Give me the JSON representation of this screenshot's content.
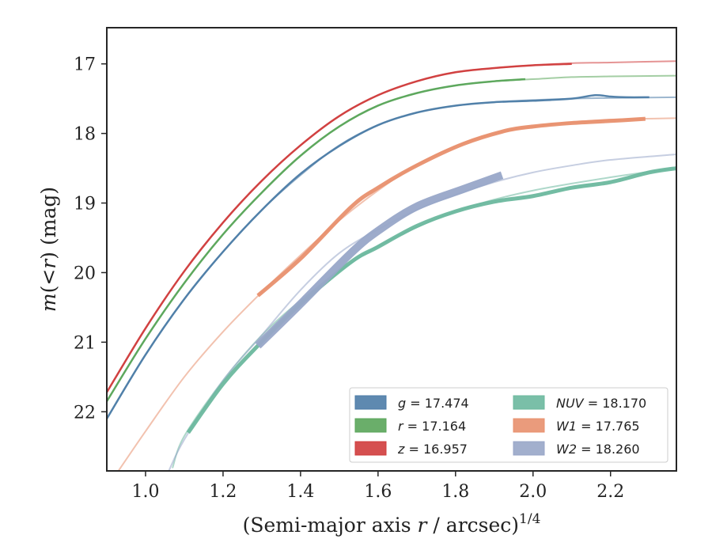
{
  "chart_data": {
    "type": "line",
    "xlabel_prefix": "(Semi-major axis ",
    "xlabel_var": "r",
    "xlabel_suffix": " / arcsec)",
    "xlabel_exp": "1/4",
    "ylabel_var": "m",
    "ylabel_lt": "(<",
    "ylabel_r": "r",
    "ylabel_suffix": ") (mag)",
    "xlim": [
      0.9,
      2.37
    ],
    "ylim": [
      22.85,
      16.48
    ],
    "y_inverted": true,
    "xticks": [
      1.0,
      1.2,
      1.4,
      1.6,
      1.8,
      2.0,
      2.2
    ],
    "xtick_labels": [
      "1.0",
      "1.2",
      "1.4",
      "1.6",
      "1.8",
      "2.0",
      "2.2"
    ],
    "yticks": [
      17,
      18,
      19,
      20,
      21,
      22
    ],
    "ytick_labels": [
      "17",
      "18",
      "19",
      "20",
      "21",
      "22"
    ],
    "grid": false,
    "legend_position": "lower-right",
    "series": [
      {
        "name": "g",
        "legend_value": "= 17.474",
        "color": "#4c7ca7",
        "thick_width": 2.5,
        "model": [
          [
            0.9,
            22.1
          ],
          [
            1.0,
            21.18
          ],
          [
            1.1,
            20.38
          ],
          [
            1.2,
            19.7
          ],
          [
            1.3,
            19.1
          ],
          [
            1.4,
            18.6
          ],
          [
            1.5,
            18.17
          ],
          [
            1.6,
            17.88
          ],
          [
            1.7,
            17.7
          ],
          [
            1.8,
            17.6
          ],
          [
            1.9,
            17.55
          ],
          [
            2.0,
            17.52
          ],
          [
            2.1,
            17.5
          ],
          [
            2.2,
            17.49
          ],
          [
            2.37,
            17.48
          ]
        ],
        "data": [
          [
            0.9,
            22.1
          ],
          [
            1.0,
            21.18
          ],
          [
            1.1,
            20.38
          ],
          [
            1.2,
            19.7
          ],
          [
            1.3,
            19.1
          ],
          [
            1.4,
            18.58
          ],
          [
            1.5,
            18.18
          ],
          [
            1.6,
            17.88
          ],
          [
            1.7,
            17.7
          ],
          [
            1.8,
            17.6
          ],
          [
            1.9,
            17.55
          ],
          [
            2.0,
            17.53
          ],
          [
            2.1,
            17.5
          ],
          [
            2.16,
            17.45
          ],
          [
            2.2,
            17.47
          ],
          [
            2.24,
            17.48
          ],
          [
            2.3,
            17.48
          ]
        ]
      },
      {
        "name": "r",
        "legend_value": "= 17.164",
        "color": "#5aa55a",
        "thick_width": 2.5,
        "model": [
          [
            0.9,
            21.85
          ],
          [
            1.0,
            20.95
          ],
          [
            1.1,
            20.15
          ],
          [
            1.2,
            19.45
          ],
          [
            1.3,
            18.85
          ],
          [
            1.4,
            18.32
          ],
          [
            1.5,
            17.9
          ],
          [
            1.6,
            17.6
          ],
          [
            1.7,
            17.42
          ],
          [
            1.8,
            17.31
          ],
          [
            1.9,
            17.25
          ],
          [
            2.0,
            17.22
          ],
          [
            2.1,
            17.19
          ],
          [
            2.2,
            17.18
          ],
          [
            2.37,
            17.17
          ]
        ],
        "data": [
          [
            0.9,
            21.85
          ],
          [
            1.0,
            20.95
          ],
          [
            1.1,
            20.15
          ],
          [
            1.2,
            19.45
          ],
          [
            1.3,
            18.85
          ],
          [
            1.4,
            18.32
          ],
          [
            1.5,
            17.9
          ],
          [
            1.6,
            17.6
          ],
          [
            1.7,
            17.42
          ],
          [
            1.8,
            17.31
          ],
          [
            1.9,
            17.25
          ],
          [
            1.98,
            17.22
          ]
        ]
      },
      {
        "name": "z",
        "legend_value": "= 16.957",
        "color": "#d03c3c",
        "thick_width": 2.5,
        "model": [
          [
            0.9,
            21.72
          ],
          [
            1.0,
            20.8
          ],
          [
            1.1,
            19.98
          ],
          [
            1.2,
            19.28
          ],
          [
            1.3,
            18.68
          ],
          [
            1.4,
            18.17
          ],
          [
            1.5,
            17.75
          ],
          [
            1.6,
            17.45
          ],
          [
            1.7,
            17.25
          ],
          [
            1.8,
            17.12
          ],
          [
            1.9,
            17.06
          ],
          [
            2.0,
            17.02
          ],
          [
            2.1,
            16.99
          ],
          [
            2.2,
            16.98
          ],
          [
            2.37,
            16.96
          ]
        ],
        "data": [
          [
            0.9,
            21.72
          ],
          [
            1.0,
            20.8
          ],
          [
            1.1,
            19.98
          ],
          [
            1.2,
            19.28
          ],
          [
            1.3,
            18.68
          ],
          [
            1.4,
            18.17
          ],
          [
            1.5,
            17.75
          ],
          [
            1.6,
            17.45
          ],
          [
            1.7,
            17.25
          ],
          [
            1.8,
            17.12
          ],
          [
            1.9,
            17.06
          ],
          [
            2.0,
            17.02
          ],
          [
            2.1,
            17.0
          ]
        ]
      },
      {
        "name": "NUV",
        "legend_value": "= 18.170",
        "color": "#6cb89e",
        "thick_width": 5,
        "model": [
          [
            1.07,
            22.8
          ],
          [
            1.1,
            22.35
          ],
          [
            1.2,
            21.55
          ],
          [
            1.3,
            20.9
          ],
          [
            1.4,
            20.4
          ],
          [
            1.5,
            19.98
          ],
          [
            1.6,
            19.62
          ],
          [
            1.7,
            19.35
          ],
          [
            1.8,
            19.12
          ],
          [
            1.9,
            18.95
          ],
          [
            2.0,
            18.82
          ],
          [
            2.1,
            18.72
          ],
          [
            2.2,
            18.63
          ],
          [
            2.3,
            18.55
          ],
          [
            2.37,
            18.5
          ]
        ],
        "data": [
          [
            1.11,
            22.3
          ],
          [
            1.2,
            21.6
          ],
          [
            1.29,
            21.05
          ],
          [
            1.4,
            20.45
          ],
          [
            1.53,
            19.85
          ],
          [
            1.6,
            19.63
          ],
          [
            1.7,
            19.33
          ],
          [
            1.8,
            19.12
          ],
          [
            1.9,
            18.98
          ],
          [
            2.0,
            18.9
          ],
          [
            2.1,
            18.78
          ],
          [
            2.2,
            18.7
          ],
          [
            2.3,
            18.56
          ],
          [
            2.37,
            18.5
          ]
        ]
      },
      {
        "name": "W1",
        "legend_value": "= 17.765",
        "color": "#e8906e",
        "thick_width": 5,
        "model": [
          [
            0.93,
            22.85
          ],
          [
            1.0,
            22.28
          ],
          [
            1.1,
            21.5
          ],
          [
            1.2,
            20.85
          ],
          [
            1.3,
            20.28
          ],
          [
            1.4,
            19.75
          ],
          [
            1.5,
            19.25
          ],
          [
            1.6,
            18.82
          ],
          [
            1.7,
            18.45
          ],
          [
            1.8,
            18.18
          ],
          [
            1.9,
            18.0
          ],
          [
            2.0,
            17.9
          ],
          [
            2.1,
            17.84
          ],
          [
            2.2,
            17.8
          ],
          [
            2.37,
            17.78
          ]
        ],
        "data": [
          [
            1.29,
            20.33
          ],
          [
            1.4,
            19.8
          ],
          [
            1.53,
            19.06
          ],
          [
            1.6,
            18.78
          ],
          [
            1.7,
            18.46
          ],
          [
            1.82,
            18.15
          ],
          [
            1.93,
            17.96
          ],
          [
            2.0,
            17.9
          ],
          [
            2.1,
            17.85
          ],
          [
            2.2,
            17.82
          ],
          [
            2.29,
            17.79
          ]
        ]
      },
      {
        "name": "W2",
        "legend_value": "= 18.260",
        "color": "#98a6c8",
        "thick_width": 10,
        "model": [
          [
            1.06,
            22.85
          ],
          [
            1.1,
            22.4
          ],
          [
            1.2,
            21.55
          ],
          [
            1.3,
            20.9
          ],
          [
            1.4,
            20.25
          ],
          [
            1.5,
            19.72
          ],
          [
            1.6,
            19.38
          ],
          [
            1.7,
            19.1
          ],
          [
            1.8,
            18.88
          ],
          [
            1.9,
            18.7
          ],
          [
            2.0,
            18.56
          ],
          [
            2.1,
            18.46
          ],
          [
            2.2,
            18.38
          ],
          [
            2.37,
            18.3
          ]
        ],
        "data": [
          [
            1.29,
            21.05
          ],
          [
            1.4,
            20.45
          ],
          [
            1.53,
            19.72
          ],
          [
            1.6,
            19.4
          ],
          [
            1.7,
            19.05
          ],
          [
            1.82,
            18.8
          ],
          [
            1.92,
            18.6
          ]
        ]
      }
    ]
  }
}
